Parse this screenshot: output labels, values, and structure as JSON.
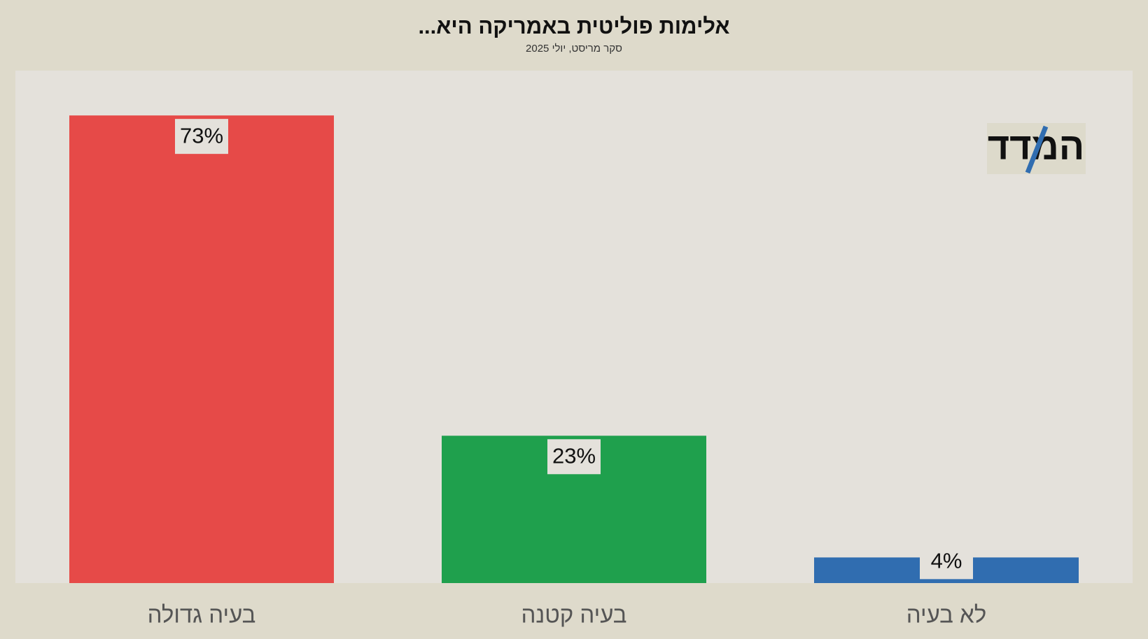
{
  "chart_data": {
    "type": "bar",
    "title": "אלימות פוליטית באמריקה היא...",
    "subtitle": "סקר מריסט, יולי 2025",
    "logo": "המדד",
    "categories": [
      "בעיה גדולה",
      "בעיה קטנה",
      "לא בעיה"
    ],
    "values": [
      73,
      23,
      4
    ],
    "value_labels": [
      "73%",
      "23%",
      "4%"
    ],
    "colors": [
      "#e64a48",
      "#1fa04d",
      "#306db0"
    ],
    "ylim": [
      0,
      80
    ],
    "grid": false
  }
}
